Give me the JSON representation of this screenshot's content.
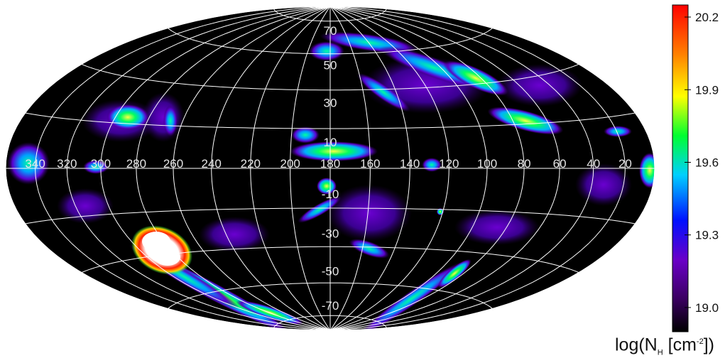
{
  "map": {
    "projection": "aitoff-hammer (all-sky)",
    "center_longitude": 180,
    "grid": "on",
    "grid_color": "#ffffff",
    "background_color": "#000000",
    "longitude_labels": [
      "340",
      "320",
      "300",
      "280",
      "260",
      "240",
      "220",
      "200",
      "180",
      "160",
      "140",
      "120",
      "100",
      "80",
      "60",
      "40",
      "20"
    ],
    "latitude_labels": [
      "70",
      "50",
      "30",
      "10",
      "-10",
      "-30",
      "-50",
      "-70"
    ],
    "emission_features": [
      {
        "name": "bright-cloud-south",
        "lon": 270,
        "lat": -44,
        "level": "saturated"
      },
      {
        "name": "filament-south",
        "lon": 245,
        "lat": -60,
        "level": "high"
      },
      {
        "name": "complex-center",
        "lon": 175,
        "lat": 8,
        "level": "high"
      },
      {
        "name": "arc-north",
        "lon": 150,
        "lat": 55,
        "level": "medium"
      },
      {
        "name": "cloud-east",
        "lon": 80,
        "lat": 25,
        "level": "medium"
      },
      {
        "name": "cloud-west",
        "lon": 290,
        "lat": 30,
        "level": "medium"
      },
      {
        "name": "stream-south-east",
        "lon": 150,
        "lat": -40,
        "level": "medium"
      }
    ]
  },
  "colorbar": {
    "range": [
      18.9,
      20.25
    ],
    "ticks": [
      {
        "value": 20.2,
        "label": "20.2"
      },
      {
        "value": 19.9,
        "label": "19.9"
      },
      {
        "value": 19.6,
        "label": "19.6"
      },
      {
        "value": 19.3,
        "label": "19.3"
      },
      {
        "value": 19.0,
        "label": "19.0"
      }
    ],
    "colors": [
      "#000000",
      "#3a0060",
      "#6a00c8",
      "#0010ff",
      "#00d0ff",
      "#00ff30",
      "#ffff00",
      "#ff8000",
      "#ff0000"
    ],
    "title": {
      "prefix": "log(N",
      "sub": "H",
      "middle": " [cm",
      "sup": "-2",
      "suffix": "])"
    }
  }
}
